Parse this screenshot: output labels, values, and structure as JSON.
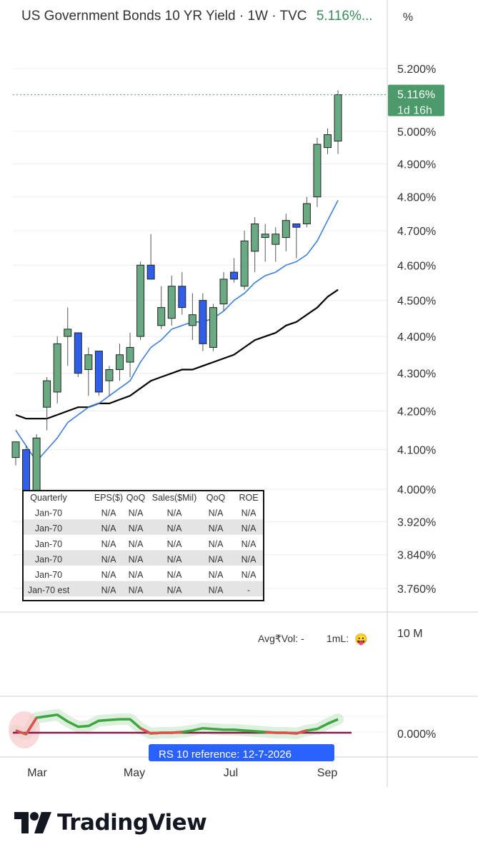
{
  "header": {
    "title": "US Government Bonds 10 YR Yield · 1W · TVC",
    "last_value": "5.116%...",
    "unit_button": "%"
  },
  "price_tag": {
    "value": "5.116%",
    "countdown": "1d 16h"
  },
  "y_ticks": [
    "5.200%",
    "5.000%",
    "4.900%",
    "4.800%",
    "4.700%",
    "4.600%",
    "4.500%",
    "4.400%",
    "4.300%",
    "4.200%",
    "4.100%",
    "4.000%",
    "3.920%",
    "3.840%",
    "3.760%"
  ],
  "volume_panel": {
    "scale_label": "10 M",
    "avg_vol_label": "Avg₹Vol: -",
    "ml_label": "1mL:",
    "emoji": "😛"
  },
  "oscillator_panel": {
    "zero_label": "0.000%",
    "reference_label": "RS 10 reference: 12-7-2026"
  },
  "x_labels": [
    "Mar",
    "May",
    "Jul",
    "Sep"
  ],
  "fundamentals_table": {
    "headers": [
      "Quarterly",
      "EPS($)",
      "QoQ",
      "Sales($Mil)",
      "QoQ",
      "ROE"
    ],
    "rows": [
      [
        "Jan-70",
        "N/A",
        "N/A",
        "N/A",
        "N/A",
        "N/A"
      ],
      [
        "Jan-70",
        "N/A",
        "N/A",
        "N/A",
        "N/A",
        "N/A"
      ],
      [
        "Jan-70",
        "N/A",
        "N/A",
        "N/A",
        "N/A",
        "N/A"
      ],
      [
        "Jan-70",
        "N/A",
        "N/A",
        "N/A",
        "N/A",
        "N/A"
      ],
      [
        "Jan-70",
        "N/A",
        "N/A",
        "N/A",
        "N/A",
        "N/A"
      ],
      [
        "Jan-70 est",
        "N/A",
        "N/A",
        "N/A",
        "N/A",
        "-"
      ]
    ]
  },
  "brand": {
    "name": "TradingView"
  },
  "colors": {
    "up": "#6aaa82",
    "down": "#2f5ee8",
    "ma_fast": "#3d7fd6",
    "ma_slow": "#000000",
    "rs_line": "#3fa53f",
    "rs_down": "#e05050",
    "zero_line": "#8a1a4a",
    "tag_bg": "#4c9a6c"
  },
  "chart_data": {
    "type": "candlestick",
    "title": "US Government Bonds 10 YR Yield · 1W · TVC",
    "timeframe": "1W",
    "y_unit": "%",
    "candles": [
      {
        "o": 4.08,
        "h": 4.12,
        "l": 4.06,
        "c": 4.12
      },
      {
        "o": 4.1,
        "h": 4.11,
        "l": 3.92,
        "c": 3.98
      },
      {
        "o": 3.92,
        "h": 4.14,
        "l": 3.91,
        "c": 4.13
      },
      {
        "o": 4.21,
        "h": 4.29,
        "l": 4.15,
        "c": 4.28
      },
      {
        "o": 4.25,
        "h": 4.4,
        "l": 4.22,
        "c": 4.38
      },
      {
        "o": 4.4,
        "h": 4.48,
        "l": 4.32,
        "c": 4.42
      },
      {
        "o": 4.41,
        "h": 4.41,
        "l": 4.29,
        "c": 4.3
      },
      {
        "o": 4.31,
        "h": 4.37,
        "l": 4.24,
        "c": 4.35
      },
      {
        "o": 4.36,
        "h": 4.36,
        "l": 4.24,
        "c": 4.25
      },
      {
        "o": 4.28,
        "h": 4.32,
        "l": 4.24,
        "c": 4.31
      },
      {
        "o": 4.31,
        "h": 4.38,
        "l": 4.28,
        "c": 4.35
      },
      {
        "o": 4.33,
        "h": 4.41,
        "l": 4.29,
        "c": 4.37
      },
      {
        "o": 4.4,
        "h": 4.61,
        "l": 4.39,
        "c": 4.6
      },
      {
        "o": 4.6,
        "h": 4.69,
        "l": 4.56,
        "c": 4.56
      },
      {
        "o": 4.43,
        "h": 4.54,
        "l": 4.42,
        "c": 4.48
      },
      {
        "o": 4.45,
        "h": 4.57,
        "l": 4.43,
        "c": 4.54
      },
      {
        "o": 4.54,
        "h": 4.58,
        "l": 4.46,
        "c": 4.48
      },
      {
        "o": 4.43,
        "h": 4.52,
        "l": 4.39,
        "c": 4.46
      },
      {
        "o": 4.5,
        "h": 4.52,
        "l": 4.36,
        "c": 4.38
      },
      {
        "o": 4.37,
        "h": 4.49,
        "l": 4.36,
        "c": 4.48
      },
      {
        "o": 4.49,
        "h": 4.58,
        "l": 4.47,
        "c": 4.56
      },
      {
        "o": 4.58,
        "h": 4.62,
        "l": 4.55,
        "c": 4.56
      },
      {
        "o": 4.54,
        "h": 4.7,
        "l": 4.53,
        "c": 4.67
      },
      {
        "o": 4.64,
        "h": 4.74,
        "l": 4.58,
        "c": 4.72
      },
      {
        "o": 4.68,
        "h": 4.72,
        "l": 4.61,
        "c": 4.69
      },
      {
        "o": 4.66,
        "h": 4.71,
        "l": 4.61,
        "c": 4.69
      },
      {
        "o": 4.68,
        "h": 4.75,
        "l": 4.64,
        "c": 4.73
      },
      {
        "o": 4.72,
        "h": 4.72,
        "l": 4.62,
        "c": 4.71
      },
      {
        "o": 4.72,
        "h": 4.8,
        "l": 4.71,
        "c": 4.78
      },
      {
        "o": 4.8,
        "h": 4.98,
        "l": 4.77,
        "c": 4.96
      },
      {
        "o": 4.95,
        "h": 5.01,
        "l": 4.93,
        "c": 4.99
      },
      {
        "o": 4.97,
        "h": 5.13,
        "l": 4.93,
        "c": 5.116
      }
    ],
    "ma_fast": [
      4.15,
      4.11,
      4.07,
      4.1,
      4.13,
      4.17,
      4.19,
      4.21,
      4.22,
      4.24,
      4.26,
      4.28,
      4.33,
      4.37,
      4.39,
      4.42,
      4.43,
      4.44,
      4.44,
      4.45,
      4.47,
      4.5,
      4.52,
      4.55,
      4.57,
      4.58,
      4.6,
      4.61,
      4.63,
      4.67,
      4.73,
      4.79
    ],
    "ma_slow": [
      4.19,
      4.18,
      4.18,
      4.18,
      4.19,
      4.2,
      4.21,
      4.21,
      4.22,
      4.22,
      4.23,
      4.24,
      4.26,
      4.28,
      4.29,
      4.3,
      4.31,
      4.31,
      4.32,
      4.33,
      4.34,
      4.35,
      4.37,
      4.39,
      4.4,
      4.41,
      4.43,
      4.44,
      4.46,
      4.48,
      4.51,
      4.53
    ],
    "rs_line": [
      0.3,
      -0.2,
      2.0,
      2.2,
      2.4,
      1.5,
      0.8,
      0.9,
      1.6,
      1.7,
      1.8,
      1.8,
      0.6,
      -0.1,
      0.0,
      0.0,
      0.1,
      0.3,
      0.6,
      0.5,
      0.4,
      0.4,
      0.3,
      0.2,
      0.1,
      0.0,
      0.0,
      -0.1,
      0.3,
      0.5,
      1.2,
      1.8
    ],
    "x_labels": [
      "Mar",
      "May",
      "Jul",
      "Sep"
    ],
    "last_price": 5.116,
    "ylim": [
      3.72,
      5.25
    ],
    "y_scale": "log"
  }
}
